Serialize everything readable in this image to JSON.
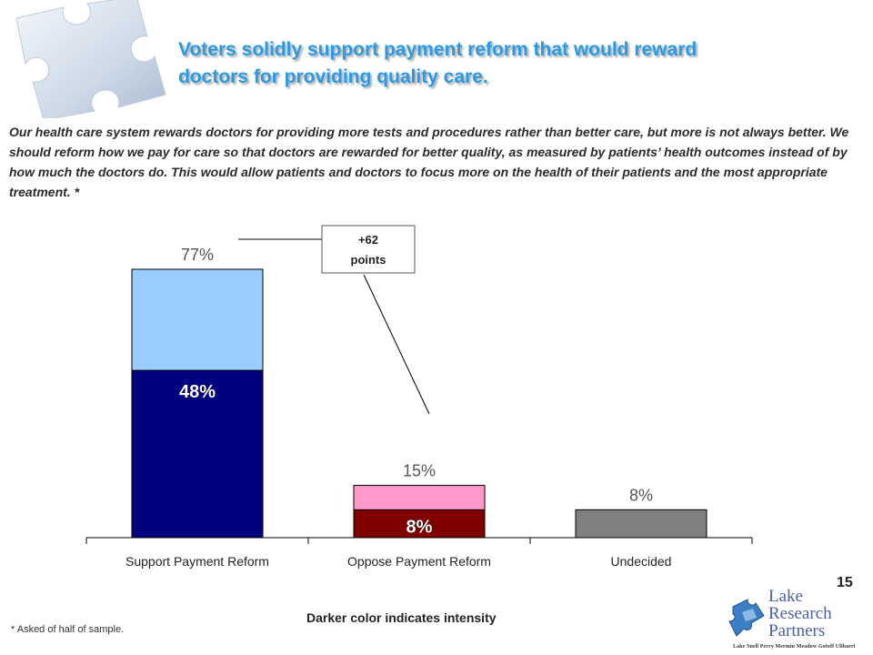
{
  "header": {
    "title_line1": "Voters solidly support payment reform that would reward",
    "title_line2": "doctors for providing quality care."
  },
  "question": "Our health care system rewards doctors for providing more tests and procedures rather than better care, but more is not always better.  We should reform how we pay for care so that doctors are rewarded for better quality, as measured by patients’ health outcomes instead of by how much the doctors do.  This would allow patients and doctors to focus more on the health of their patients and the most appropriate treatment. *",
  "callout": {
    "line1": "+62",
    "line2": "points"
  },
  "page_number": "15",
  "footnote": "* Asked of half of sample.",
  "intensity_note": "Darker color indicates intensity",
  "logo": {
    "line1": "Lake",
    "line2": "Research",
    "line3": "Partners",
    "names": "Lake  Snell  Perry  Mermin  Meadow  Gotoff  Ulibarri"
  },
  "colors": {
    "title": "#2a9be3",
    "support_strong": "#000080",
    "support_total": "#99ccff",
    "oppose_strong": "#800000",
    "oppose_total": "#ff99cc",
    "undecided": "#808080"
  },
  "chart_data": {
    "type": "bar",
    "stacked": true,
    "categories": [
      "Support Payment Reform",
      "Oppose Payment Reform",
      "Undecided"
    ],
    "totals": [
      77,
      15,
      8
    ],
    "total_labels": [
      "77%",
      "15%",
      "8%"
    ],
    "intense": [
      48,
      8,
      null
    ],
    "intense_labels": [
      "48%",
      "8%",
      ""
    ],
    "ylim": [
      0,
      100
    ],
    "grid": false,
    "legend": "none"
  }
}
